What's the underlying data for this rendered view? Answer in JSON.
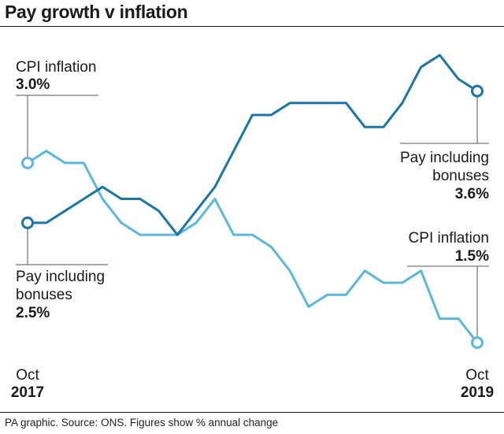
{
  "title": "Pay growth v inflation",
  "footer": "PA graphic. Source: ONS. Figures show % annual change",
  "colors": {
    "pay": "#1976a6",
    "cpi": "#5ab8dd",
    "text": "#1a1a1a",
    "leader": "#555555"
  },
  "annotations": {
    "cpi_start": {
      "label": "CPI inflation",
      "value": "3.0%"
    },
    "pay_start": {
      "label_line1": "Pay including",
      "label_line2": "bonuses",
      "value": "2.5%"
    },
    "pay_end": {
      "label_line1": "Pay including",
      "label_line2": "bonuses",
      "value": "3.6%"
    },
    "cpi_end": {
      "label": "CPI inflation",
      "value": "1.5%"
    }
  },
  "axis": {
    "start_month": "Oct",
    "start_year": "2017",
    "end_month": "Oct",
    "end_year": "2019"
  },
  "chart_data": {
    "type": "line",
    "title": "Pay growth v inflation",
    "xlabel": "",
    "ylabel": "% annual change",
    "x": [
      "Oct 2017",
      "Nov 2017",
      "Dec 2017",
      "Jan 2018",
      "Feb 2018",
      "Mar 2018",
      "Apr 2018",
      "May 2018",
      "Jun 2018",
      "Jul 2018",
      "Aug 2018",
      "Sep 2018",
      "Oct 2018",
      "Nov 2018",
      "Dec 2018",
      "Jan 2019",
      "Feb 2019",
      "Mar 2019",
      "Apr 2019",
      "May 2019",
      "Jun 2019",
      "Jul 2019",
      "Aug 2019",
      "Sep 2019",
      "Oct 2019"
    ],
    "ylim": [
      1.5,
      3.9
    ],
    "grid": false,
    "series": [
      {
        "name": "Pay including bonuses",
        "values": [
          2.5,
          2.5,
          2.6,
          2.7,
          2.8,
          2.7,
          2.7,
          2.6,
          2.4,
          2.6,
          2.8,
          3.1,
          3.4,
          3.4,
          3.5,
          3.5,
          3.5,
          3.5,
          3.3,
          3.3,
          3.5,
          3.8,
          3.9,
          3.7,
          3.6
        ]
      },
      {
        "name": "CPI inflation",
        "values": [
          3.0,
          3.1,
          3.0,
          3.0,
          2.7,
          2.5,
          2.4,
          2.4,
          2.4,
          2.5,
          2.7,
          2.4,
          2.4,
          2.3,
          2.1,
          1.8,
          1.9,
          1.9,
          2.1,
          2.0,
          2.0,
          2.1,
          1.7,
          1.7,
          1.5
        ]
      }
    ]
  }
}
